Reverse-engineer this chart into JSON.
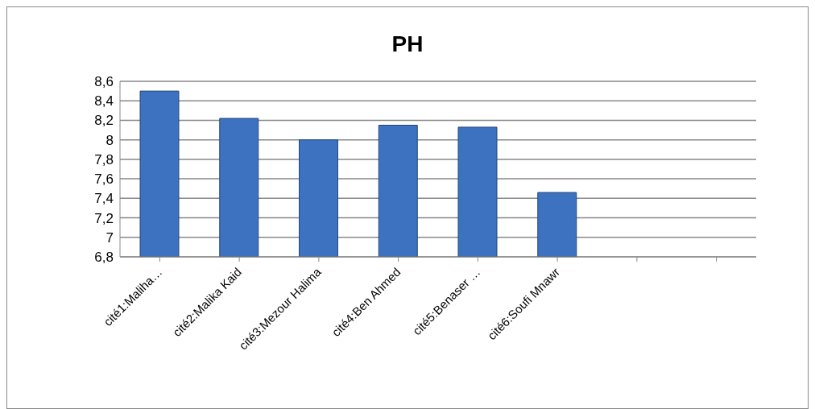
{
  "chart_data": {
    "type": "bar",
    "title": "PH",
    "categories": [
      "cité1:Maliha…",
      "cité2:Malika Kaid",
      "cité3:Mezour Halima",
      "cité4:Ben Ahmed",
      "cité5:Benaser …",
      "cité6:Soufi Mnawr",
      null,
      null
    ],
    "values": [
      8.5,
      8.22,
      8.0,
      8.15,
      8.13,
      7.46,
      null,
      null
    ],
    "color": "#3d72c0",
    "ylim": [
      6.8,
      8.6
    ],
    "yticks": [
      {
        "value": 6.8,
        "label": "6,8"
      },
      {
        "value": 7,
        "label": "7"
      },
      {
        "value": 7.2,
        "label": "7,2"
      },
      {
        "value": 7.4,
        "label": "7,4"
      },
      {
        "value": 7.6,
        "label": "7,6"
      },
      {
        "value": 7.8,
        "label": "7,8"
      },
      {
        "value": 8,
        "label": "8"
      },
      {
        "value": 8.2,
        "label": "8,2"
      },
      {
        "value": 8.4,
        "label": "8,4"
      },
      {
        "value": 8.6,
        "label": "8,6"
      }
    ],
    "grid": "y",
    "legend": false
  }
}
